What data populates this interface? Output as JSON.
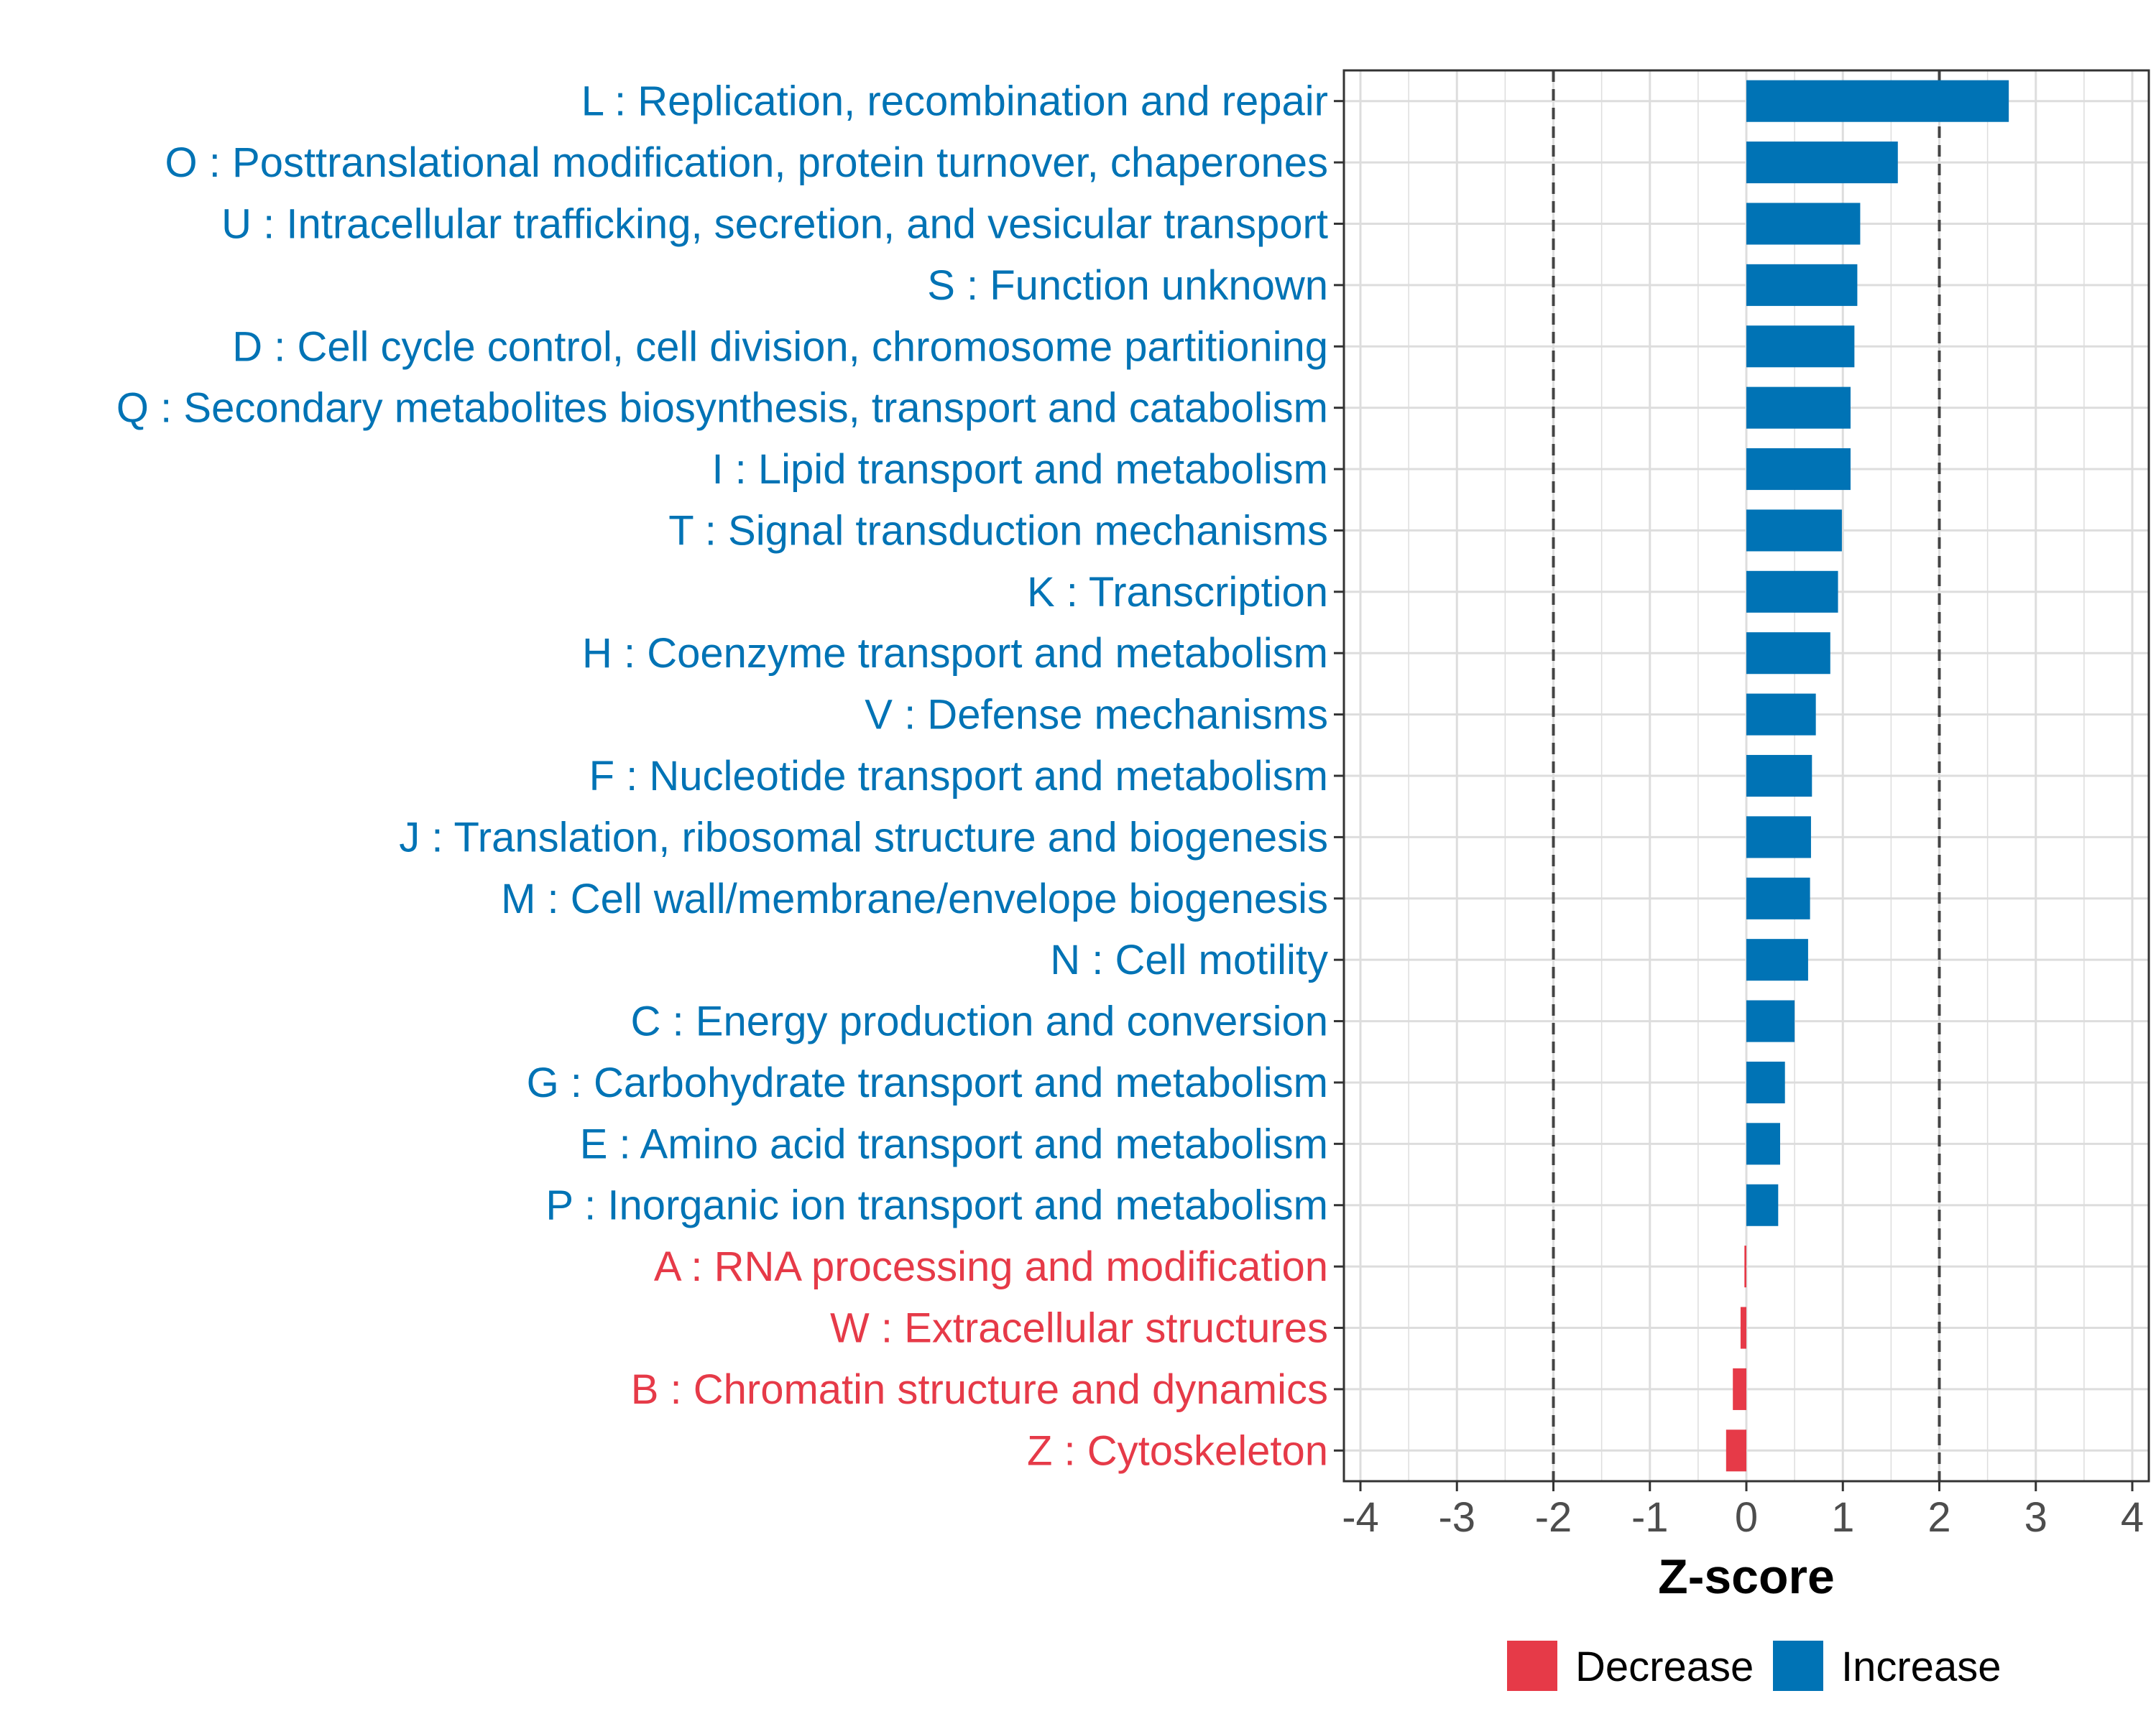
{
  "colors": {
    "increase": "#0073B5",
    "decrease": "#E63A48",
    "grid": "#DDDDDD",
    "axis": "#333333",
    "tick_text": "#4D4D4D",
    "ref_line": "#444444"
  },
  "chart_data": {
    "type": "bar",
    "orientation": "horizontal",
    "title": "",
    "xlabel": "Z-score",
    "ylabel": "",
    "xlim": [
      -4,
      4
    ],
    "x_ticks": [
      "-4",
      "-3",
      "-2",
      "-1",
      "0",
      "1",
      "2",
      "3",
      "4"
    ],
    "x_tick_values": [
      -4,
      -3,
      -2,
      -1,
      0,
      1,
      2,
      3,
      4
    ],
    "reference_lines": [
      -2,
      2
    ],
    "grid": true,
    "legend_position": "bottom",
    "legend": [
      {
        "label": "Decrease",
        "color_key": "decrease"
      },
      {
        "label": "Increase",
        "color_key": "increase"
      }
    ],
    "categories": [
      "L : Replication, recombination and repair",
      "O : Posttranslational modification, protein turnover, chaperones",
      "U : Intracellular trafficking, secretion, and vesicular transport",
      "S : Function unknown",
      "D : Cell cycle control, cell division, chromosome partitioning",
      "Q : Secondary metabolites biosynthesis, transport and catabolism",
      "I : Lipid transport and metabolism",
      "T : Signal transduction mechanisms",
      "K : Transcription",
      "H : Coenzyme transport and metabolism",
      "V : Defense mechanisms",
      "F : Nucleotide transport and metabolism",
      "J : Translation, ribosomal structure and biogenesis",
      "M : Cell wall/membrane/envelope biogenesis",
      "N : Cell motility",
      "C : Energy production and conversion",
      "G : Carbohydrate transport and metabolism",
      "E : Amino acid transport and metabolism",
      "P : Inorganic ion transport and metabolism",
      "A : RNA processing and modification",
      "W : Extracellular structures",
      "B : Chromatin structure and dynamics",
      "Z : Cytoskeleton"
    ],
    "values": [
      2.72,
      1.57,
      1.18,
      1.15,
      1.12,
      1.08,
      1.08,
      0.99,
      0.95,
      0.87,
      0.72,
      0.68,
      0.67,
      0.66,
      0.64,
      0.5,
      0.4,
      0.35,
      0.33,
      -0.02,
      -0.06,
      -0.14,
      -0.21
    ],
    "groups": [
      "Increase",
      "Increase",
      "Increase",
      "Increase",
      "Increase",
      "Increase",
      "Increase",
      "Increase",
      "Increase",
      "Increase",
      "Increase",
      "Increase",
      "Increase",
      "Increase",
      "Increase",
      "Increase",
      "Increase",
      "Increase",
      "Increase",
      "Decrease",
      "Decrease",
      "Decrease",
      "Decrease"
    ]
  }
}
